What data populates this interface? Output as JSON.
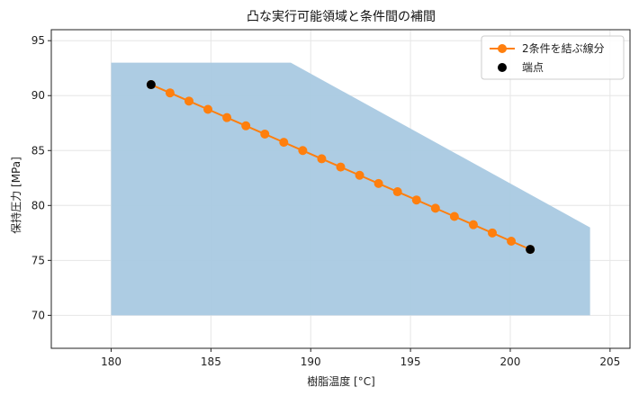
{
  "chart_data": {
    "type": "line",
    "title": "凸な実行可能領域と条件間の補間",
    "xlabel": "樹脂温度 [°C]",
    "ylabel": "保持圧力 [MPa]",
    "xlim": [
      177,
      206
    ],
    "ylim": [
      67,
      96
    ],
    "xticks": [
      180,
      185,
      190,
      195,
      200,
      205
    ],
    "yticks": [
      70,
      75,
      80,
      85,
      90,
      95
    ],
    "grid": true,
    "legend_position": "top-right",
    "colors": {
      "region": "#a9c9e2",
      "line": "#ff7f0e",
      "endpoint": "#000000",
      "grid": "#e6e6e6"
    },
    "region": {
      "polygon": [
        [
          180,
          70
        ],
        [
          180,
          93
        ],
        [
          189,
          93
        ],
        [
          204,
          78
        ],
        [
          204,
          70
        ]
      ]
    },
    "series": [
      {
        "name": "2条件を結ぶ線分",
        "x": [
          182.0,
          182.95,
          183.9,
          184.85,
          185.8,
          186.75,
          187.7,
          188.65,
          189.6,
          190.55,
          191.5,
          192.45,
          193.4,
          194.35,
          195.3,
          196.25,
          197.2,
          198.15,
          199.1,
          200.05,
          201.0
        ],
        "y": [
          91.0,
          90.25,
          89.5,
          88.75,
          88.0,
          87.25,
          86.5,
          85.75,
          85.0,
          84.25,
          83.5,
          82.75,
          82.0,
          81.25,
          80.5,
          79.75,
          79.0,
          78.25,
          77.5,
          76.75,
          76.0
        ]
      }
    ],
    "endpoints": {
      "name": "端点",
      "x": [
        182,
        201
      ],
      "y": [
        91,
        76
      ]
    }
  }
}
